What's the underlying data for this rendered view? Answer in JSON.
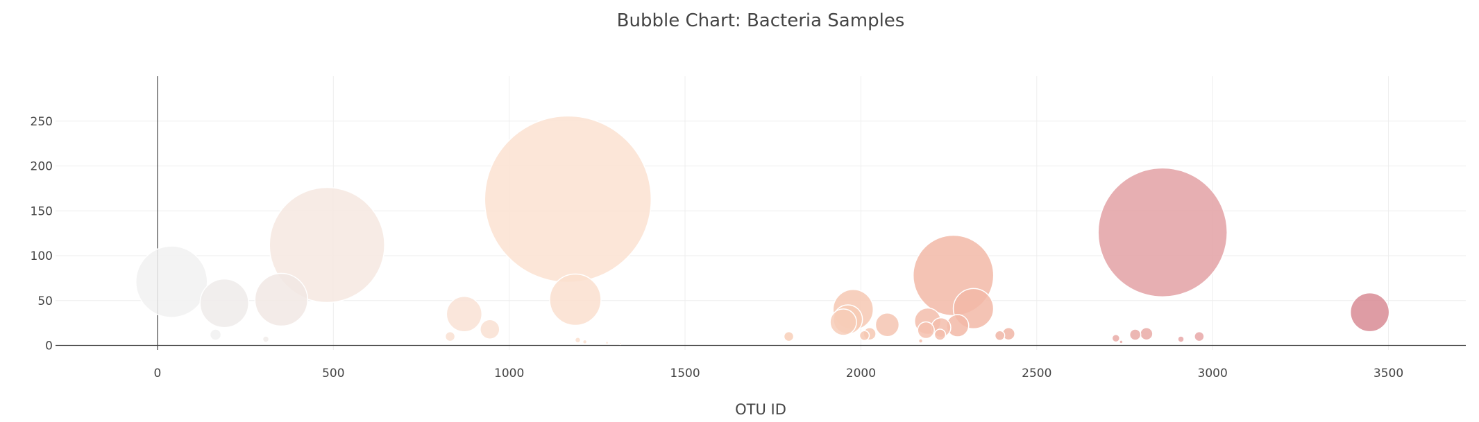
{
  "chart_data": {
    "type": "scatter",
    "subtype": "bubble",
    "title": "Bubble Chart: Bacteria Samples",
    "xlabel": "OTU ID",
    "ylabel": "",
    "xlim": [
      -290,
      3720
    ],
    "ylim": [
      -5,
      300
    ],
    "xticks": [
      0,
      500,
      1000,
      1500,
      2000,
      2500,
      3000,
      3500
    ],
    "yticks": [
      0,
      50,
      100,
      150,
      200,
      250
    ],
    "grid": true,
    "legend": "none",
    "color_scale": [
      "#f1f1f1",
      "#fbe2d1",
      "#f2b9a7",
      "#e3a1a4",
      "#d88b94"
    ],
    "points": [
      {
        "x": 40,
        "y": 71,
        "size": 103,
        "color": "#f1f1f1"
      },
      {
        "x": 165,
        "y": 12,
        "size": 16,
        "color": "#f1f1f1"
      },
      {
        "x": 190,
        "y": 47,
        "size": 70,
        "color": "#efebea"
      },
      {
        "x": 308,
        "y": 7,
        "size": 9,
        "color": "#f1ecea"
      },
      {
        "x": 352,
        "y": 51,
        "size": 76,
        "color": "#f1e8e4"
      },
      {
        "x": 482,
        "y": 112,
        "size": 166,
        "color": "#f6e8e0"
      },
      {
        "x": 832,
        "y": 10,
        "size": 14,
        "color": "#f9e0d2"
      },
      {
        "x": 872,
        "y": 35,
        "size": 51,
        "color": "#f9e2d5"
      },
      {
        "x": 945,
        "y": 18,
        "size": 28,
        "color": "#f9e0d2"
      },
      {
        "x": 1167,
        "y": 163,
        "size": 240,
        "color": "#fbe2d1"
      },
      {
        "x": 1188,
        "y": 51,
        "size": 74,
        "color": "#fadfcf"
      },
      {
        "x": 1195,
        "y": 6,
        "size": 8,
        "color": "#fadfcf"
      },
      {
        "x": 1215,
        "y": 4,
        "size": 6,
        "color": "#fadfcf"
      },
      {
        "x": 1278,
        "y": 3,
        "size": 4,
        "color": "#fadfcf"
      },
      {
        "x": 1316,
        "y": 2,
        "size": 3,
        "color": "#fadfcf"
      },
      {
        "x": 1795,
        "y": 10,
        "size": 14,
        "color": "#f8cfb8"
      },
      {
        "x": 1950,
        "y": 26,
        "size": 38,
        "color": "#f7cdb8"
      },
      {
        "x": 1963,
        "y": 29,
        "size": 42,
        "color": "#f7cbb5"
      },
      {
        "x": 1978,
        "y": 40,
        "size": 58,
        "color": "#f6c8b3"
      },
      {
        "x": 2010,
        "y": 11,
        "size": 14,
        "color": "#f6c8b3"
      },
      {
        "x": 2025,
        "y": 13,
        "size": 18,
        "color": "#f6c8b3"
      },
      {
        "x": 2075,
        "y": 23,
        "size": 34,
        "color": "#f5c4b1"
      },
      {
        "x": 2170,
        "y": 5,
        "size": 6,
        "color": "#f4c0ae"
      },
      {
        "x": 2185,
        "y": 17,
        "size": 24,
        "color": "#f4c0ae"
      },
      {
        "x": 2190,
        "y": 27,
        "size": 38,
        "color": "#f3bdab"
      },
      {
        "x": 2225,
        "y": 12,
        "size": 16,
        "color": "#f3bdab"
      },
      {
        "x": 2228,
        "y": 20,
        "size": 28,
        "color": "#f3bdab"
      },
      {
        "x": 2263,
        "y": 78,
        "size": 116,
        "color": "#f2b9a7"
      },
      {
        "x": 2275,
        "y": 22,
        "size": 32,
        "color": "#f2b9a7"
      },
      {
        "x": 2320,
        "y": 41,
        "size": 58,
        "color": "#f2b9a7"
      },
      {
        "x": 2395,
        "y": 11,
        "size": 14,
        "color": "#f0b5a6"
      },
      {
        "x": 2420,
        "y": 13,
        "size": 18,
        "color": "#f0b5a6"
      },
      {
        "x": 2725,
        "y": 8,
        "size": 11,
        "color": "#e9aaa6"
      },
      {
        "x": 2740,
        "y": 4,
        "size": 5,
        "color": "#e9aaa6"
      },
      {
        "x": 2780,
        "y": 12,
        "size": 16,
        "color": "#e9aaa6"
      },
      {
        "x": 2812,
        "y": 13,
        "size": 18,
        "color": "#e9aaa6"
      },
      {
        "x": 2858,
        "y": 126,
        "size": 186,
        "color": "#e3a1a4"
      },
      {
        "x": 2910,
        "y": 7,
        "size": 9,
        "color": "#e7a7a7"
      },
      {
        "x": 2962,
        "y": 10,
        "size": 14,
        "color": "#e7a7a7"
      },
      {
        "x": 3447,
        "y": 37,
        "size": 56,
        "color": "#d88b94"
      }
    ]
  }
}
